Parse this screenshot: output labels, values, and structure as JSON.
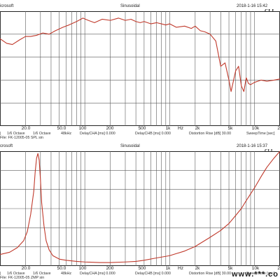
{
  "panels": [
    {
      "header": {
        "vendor": "icrosoft",
        "mode": "Sinusoidal",
        "timestamp": "2018-1-16 15:42",
        "logo": "CLI"
      },
      "settings": {
        "sep": "|",
        "smoothing": "1/6 Octave",
        "resolution": "1/6 Octave",
        "sample_rate": "48kHz",
        "delay_cha": "DelayCHA [ms] 0.000",
        "delay_chb": "DelayCHB [ms] 0.000",
        "distortion_rise": "Distortion Rise [dB] 30.00",
        "sweep_time": "SweepTime [sec]",
        "file": "File: FK-12005-05 SPL sin"
      },
      "x_tick_labels": [
        "20.0",
        "50.0",
        "100",
        "200",
        "500",
        "1k",
        "Hz",
        "2k",
        "5k",
        "10k",
        "2"
      ]
    },
    {
      "header": {
        "vendor": "crosoft",
        "mode": "Sinusoidal",
        "timestamp": "2018-1-16 15:37",
        "logo": "CLI"
      },
      "settings": {
        "sep": "|",
        "smoothing": "1/6 Octave",
        "resolution": "1/6 Octave",
        "sample_rate": "48kHz",
        "delay_cha": "DelayCHA [ms] 0.000",
        "delay_chb": "DelayCHB [ms] 0.000",
        "distortion_rise": "Distortion Rise [dB] 30.00",
        "sweep_time": "SweepTime [sec]",
        "file": "File: FK-12005-05 ZMP sin"
      },
      "x_tick_labels": [
        "20.0",
        "50.0",
        "100",
        "200",
        "500",
        "1k",
        "Hz",
        "2k",
        "5k",
        "10k",
        "2"
      ]
    }
  ],
  "watermark": "www.***.co",
  "colors": {
    "curve": "#c0392b",
    "grid": "#5a5a5a",
    "axis": "#222222"
  },
  "chart_data": [
    {
      "type": "line",
      "x_scale": "log",
      "xlim": [
        10,
        20000
      ],
      "x_gridlines": [
        10,
        20,
        30,
        40,
        50,
        60,
        70,
        80,
        90,
        100,
        200,
        300,
        400,
        500,
        600,
        700,
        800,
        900,
        1000,
        2000,
        3000,
        4000,
        5000,
        6000,
        7000,
        8000,
        9000,
        10000,
        20000
      ],
      "y_gridlines": 5,
      "grid": true,
      "x": [
        10,
        12,
        14,
        17,
        20,
        23,
        27,
        32,
        38,
        45,
        55,
        65,
        80,
        95,
        110,
        130,
        160,
        200,
        250,
        300,
        350,
        400,
        450,
        500,
        600,
        700,
        800,
        900,
        1000,
        1200,
        1500,
        1800,
        2000,
        2300,
        2600,
        3000,
        3500,
        4000,
        4500,
        5000,
        5300,
        5600,
        6000,
        6500,
        7000,
        7500,
        8000,
        8500,
        9000,
        10000,
        12000,
        14000,
        17000,
        20000
      ],
      "y": [
        0.76,
        0.72,
        0.71,
        0.75,
        0.78,
        0.78,
        0.79,
        0.81,
        0.8,
        0.83,
        0.86,
        0.88,
        0.91,
        0.94,
        0.92,
        0.9,
        0.93,
        0.92,
        0.94,
        0.92,
        0.93,
        0.91,
        0.9,
        0.91,
        0.89,
        0.9,
        0.89,
        0.88,
        0.89,
        0.86,
        0.87,
        0.85,
        0.87,
        0.83,
        0.82,
        0.8,
        0.74,
        0.52,
        0.55,
        0.4,
        0.3,
        0.38,
        0.48,
        0.52,
        0.35,
        0.3,
        0.42,
        0.37,
        0.36,
        0.38,
        0.4,
        0.39,
        0.4,
        0.41
      ]
    },
    {
      "type": "line",
      "x_scale": "log",
      "xlim": [
        10,
        20000
      ],
      "x_gridlines": [
        10,
        20,
        30,
        40,
        50,
        60,
        70,
        80,
        90,
        100,
        200,
        300,
        400,
        500,
        600,
        700,
        800,
        900,
        1000,
        2000,
        3000,
        4000,
        5000,
        6000,
        7000,
        8000,
        9000,
        10000,
        20000
      ],
      "y_gridlines": 6,
      "grid": true,
      "x": [
        10,
        13,
        16,
        19,
        21,
        23,
        25,
        26,
        27,
        28,
        29,
        30,
        31,
        33,
        35,
        38,
        42,
        50,
        60,
        80,
        100,
        150,
        200,
        300,
        400,
        500,
        700,
        1000,
        1500,
        2000,
        3000,
        4000,
        5000,
        6000,
        7000,
        8000,
        10000,
        12000,
        14000,
        17000,
        20000
      ],
      "y": [
        0.1,
        0.12,
        0.16,
        0.22,
        0.3,
        0.45,
        0.65,
        0.82,
        0.94,
        0.98,
        0.92,
        0.75,
        0.55,
        0.35,
        0.22,
        0.14,
        0.09,
        0.06,
        0.05,
        0.04,
        0.035,
        0.03,
        0.03,
        0.035,
        0.04,
        0.05,
        0.07,
        0.09,
        0.13,
        0.17,
        0.25,
        0.31,
        0.37,
        0.44,
        0.5,
        0.57,
        0.68,
        0.78,
        0.86,
        0.94,
        1.0
      ]
    }
  ]
}
